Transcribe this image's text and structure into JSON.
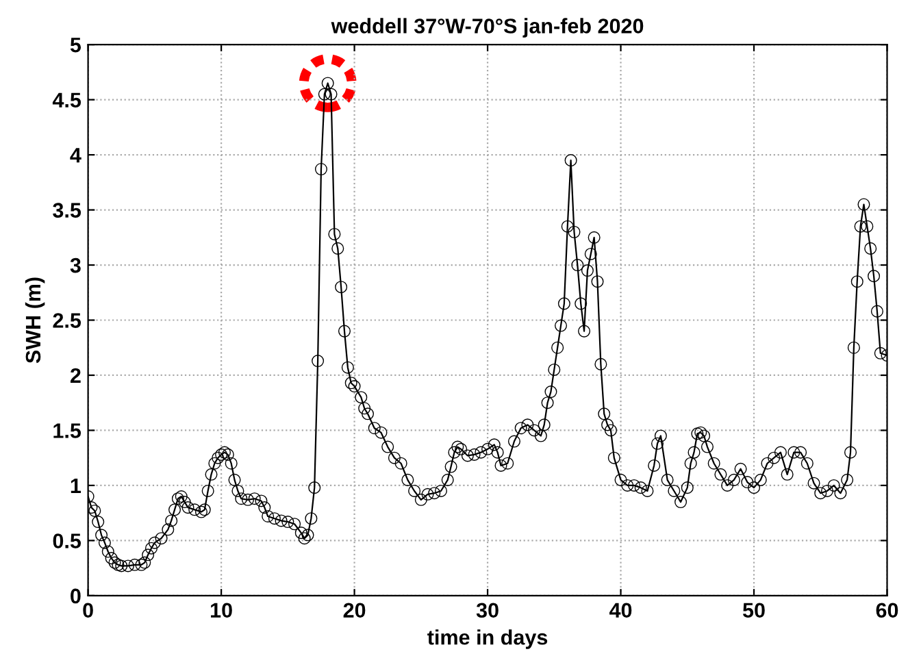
{
  "chart_data": {
    "type": "line",
    "title": "weddell 37°W-70°S jan-feb 2020",
    "xlabel": "time in days",
    "ylabel": "SWH (m)",
    "xlim": [
      0,
      60
    ],
    "xticks": [
      0,
      10,
      20,
      30,
      40,
      50,
      60
    ],
    "ylim": [
      0,
      5
    ],
    "yticks": [
      0,
      0.5,
      1,
      1.5,
      2,
      2.5,
      3,
      3.5,
      4,
      4.5,
      5
    ],
    "grid": true,
    "marker": "circle",
    "line_style": "solid",
    "series": [
      {
        "color": "#000000",
        "x": [
          0,
          0.25,
          0.5,
          0.75,
          1,
          1.25,
          1.5,
          1.75,
          2,
          2.25,
          2.5,
          3,
          3.5,
          4,
          4.25,
          4.5,
          4.75,
          5,
          5.5,
          6,
          6.25,
          6.5,
          6.75,
          7,
          7.25,
          7.5,
          8,
          8.5,
          8.75,
          9,
          9.25,
          9.5,
          9.75,
          10,
          10.25,
          10.5,
          10.75,
          11,
          11.25,
          11.5,
          12,
          12.5,
          13,
          13.25,
          13.5,
          14,
          14.5,
          15,
          15.5,
          16,
          16.25,
          16.5,
          16.75,
          17,
          17.25,
          17.5,
          17.75,
          18,
          18.25,
          18.5,
          18.75,
          19,
          19.25,
          19.5,
          19.75,
          20,
          20.5,
          20.75,
          21,
          21.5,
          22,
          22.5,
          23,
          23.5,
          24,
          24.5,
          25,
          25.5,
          26,
          26.5,
          27,
          27.25,
          27.5,
          27.75,
          28,
          28.5,
          29,
          29.5,
          30,
          30.5,
          30.75,
          31,
          31.5,
          32,
          32.5,
          33,
          33.5,
          34,
          34.25,
          34.5,
          34.75,
          35,
          35.25,
          35.5,
          35.75,
          36,
          36.25,
          36.5,
          36.75,
          37,
          37.25,
          37.5,
          37.75,
          38,
          38.25,
          38.5,
          38.75,
          39,
          39.25,
          39.5,
          40,
          40.5,
          41,
          41.5,
          42,
          42.5,
          42.75,
          43,
          43.5,
          44,
          44.5,
          45,
          45.25,
          45.5,
          45.75,
          46,
          46.25,
          46.5,
          47,
          47.5,
          48,
          48.5,
          49,
          49.5,
          50,
          50.5,
          51,
          51.5,
          52,
          52.5,
          53,
          53.5,
          54,
          54.5,
          55,
          55.5,
          56,
          56.5,
          57,
          57.25,
          57.5,
          57.75,
          58,
          58.25,
          58.5,
          58.75,
          59,
          59.25,
          59.5,
          60
        ],
        "values": [
          0.9,
          0.8,
          0.77,
          0.67,
          0.55,
          0.48,
          0.4,
          0.34,
          0.3,
          0.28,
          0.27,
          0.27,
          0.28,
          0.28,
          0.3,
          0.37,
          0.43,
          0.48,
          0.52,
          0.6,
          0.68,
          0.78,
          0.88,
          0.9,
          0.85,
          0.8,
          0.78,
          0.76,
          0.78,
          0.95,
          1.1,
          1.2,
          1.25,
          1.28,
          1.3,
          1.28,
          1.2,
          1.05,
          0.95,
          0.88,
          0.87,
          0.88,
          0.86,
          0.8,
          0.72,
          0.7,
          0.68,
          0.67,
          0.65,
          0.57,
          0.52,
          0.55,
          0.7,
          0.98,
          2.13,
          3.87,
          4.55,
          4.65,
          4.55,
          3.28,
          3.15,
          2.8,
          2.4,
          2.07,
          1.93,
          1.9,
          1.8,
          1.7,
          1.65,
          1.52,
          1.48,
          1.35,
          1.25,
          1.2,
          1.05,
          0.95,
          0.87,
          0.92,
          0.93,
          0.95,
          1.05,
          1.17,
          1.3,
          1.35,
          1.33,
          1.27,
          1.28,
          1.3,
          1.33,
          1.37,
          1.3,
          1.18,
          1.2,
          1.4,
          1.52,
          1.55,
          1.5,
          1.45,
          1.55,
          1.75,
          1.85,
          2.05,
          2.25,
          2.45,
          2.65,
          3.35,
          3.95,
          3.3,
          3.0,
          2.65,
          2.4,
          2.95,
          3.1,
          3.25,
          2.85,
          2.1,
          1.65,
          1.55,
          1.5,
          1.25,
          1.05,
          1.0,
          1.0,
          0.98,
          0.95,
          1.18,
          1.38,
          1.45,
          1.05,
          0.95,
          0.85,
          0.98,
          1.2,
          1.3,
          1.47,
          1.48,
          1.45,
          1.35,
          1.2,
          1.1,
          1.0,
          1.05,
          1.15,
          1.03,
          0.98,
          1.05,
          1.2,
          1.25,
          1.3,
          1.1,
          1.3,
          1.3,
          1.2,
          1.02,
          0.93,
          0.95,
          1.0,
          0.93,
          1.05,
          1.3,
          2.25,
          2.85,
          3.35,
          3.55,
          3.35,
          3.15,
          2.9,
          2.58,
          2.2,
          2.18
        ]
      }
    ]
  }
}
